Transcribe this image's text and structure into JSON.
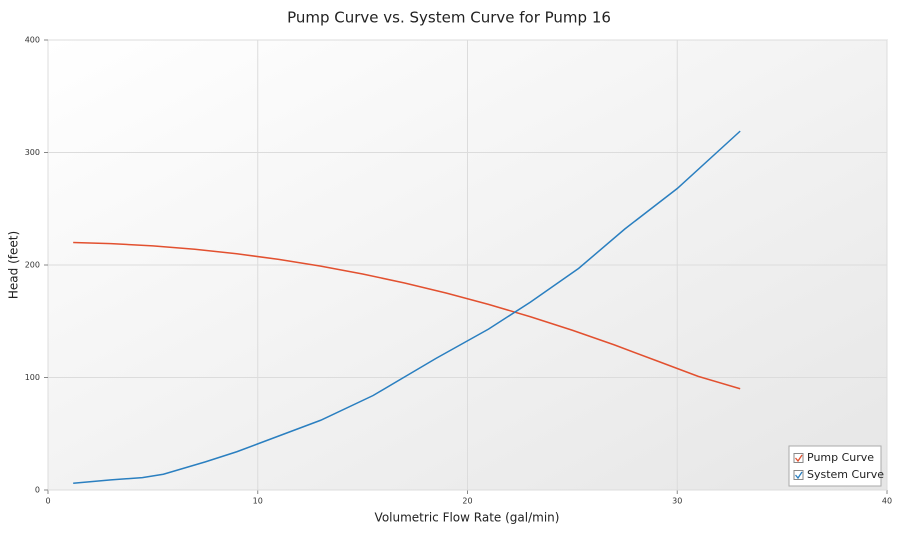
{
  "chart_data": {
    "type": "line",
    "title": "Pump Curve vs. System Curve for Pump 16",
    "xlabel": "Volumetric Flow Rate (gal/min)",
    "ylabel": "Head (feet)",
    "xlim": [
      0,
      40
    ],
    "ylim": [
      0,
      400
    ],
    "xticks": [
      0,
      10,
      20,
      30,
      40
    ],
    "yticks": [
      0,
      100,
      200,
      300,
      400
    ],
    "grid": true,
    "legend": "lower right",
    "series": [
      {
        "name": "Pump Curve",
        "color": "#e2502f",
        "x": [
          1.2,
          3,
          5,
          7,
          9,
          11,
          13,
          15,
          17,
          19,
          21,
          23,
          25,
          27,
          29,
          31,
          33
        ],
        "values": [
          220,
          219,
          217,
          214,
          210,
          205,
          199,
          192,
          184,
          175,
          165,
          154,
          142,
          129,
          115,
          101,
          90
        ]
      },
      {
        "name": "System Curve",
        "color": "#2a7fc0",
        "x": [
          1.2,
          3,
          4.5,
          5.5,
          7.5,
          9,
          10,
          13,
          15.5,
          18.5,
          21,
          23,
          25.3,
          27.5,
          30,
          33
        ],
        "values": [
          6,
          9,
          11,
          14,
          25,
          34,
          41,
          62,
          84,
          117,
          143,
          167,
          197,
          232,
          268,
          319
        ]
      }
    ]
  }
}
